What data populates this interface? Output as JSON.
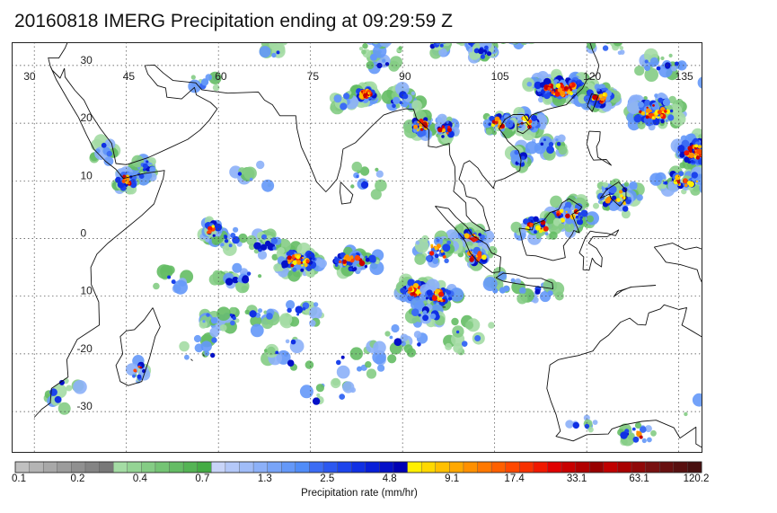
{
  "title": "20160818 IMERG Precipitation ending at 09:29:59 Z",
  "map": {
    "projection": "equirectangular",
    "lon_range": [
      30,
      150
    ],
    "lat_range": [
      -37,
      37
    ],
    "lon_ticks": [
      "30",
      "45",
      "60",
      "75",
      "90",
      "105",
      "120",
      "135"
    ],
    "lat_ticks": [
      "30",
      "20",
      "10",
      "0",
      "10",
      "-20",
      "-30"
    ],
    "gridlines": "dotted"
  },
  "colorbar": {
    "label": "Precipitation rate (mm/hr)",
    "tick_labels": [
      "0.1",
      "0.2",
      "0.4",
      "0.7",
      "1.3",
      "2.5",
      "4.8",
      "9.1",
      "17.4",
      "33.1",
      "63.1",
      "120.2"
    ],
    "colors": [
      "#c0c0c0",
      "#b4b4b4",
      "#a8a8a8",
      "#9c9c9c",
      "#909090",
      "#848484",
      "#787878",
      "#a4dca4",
      "#94d494",
      "#84cc84",
      "#74c474",
      "#64bc64",
      "#54b454",
      "#44ac44",
      "#c8d4f8",
      "#b4c8f8",
      "#a0bcf8",
      "#8cb0f8",
      "#78a4f8",
      "#6498f8",
      "#508cf8",
      "#3c6cf4",
      "#2c58f0",
      "#1c44ec",
      "#1030e4",
      "#081ed8",
      "#0410c8",
      "#0000b4",
      "#fff000",
      "#ffd800",
      "#ffc000",
      "#ffa800",
      "#ff9000",
      "#ff7800",
      "#ff6000",
      "#ff4800",
      "#f83000",
      "#f01800",
      "#e00000",
      "#c80000",
      "#b00000",
      "#980000",
      "#c00000",
      "#a80000",
      "#900808",
      "#781010",
      "#681010",
      "#581010",
      "#481010"
    ]
  }
}
